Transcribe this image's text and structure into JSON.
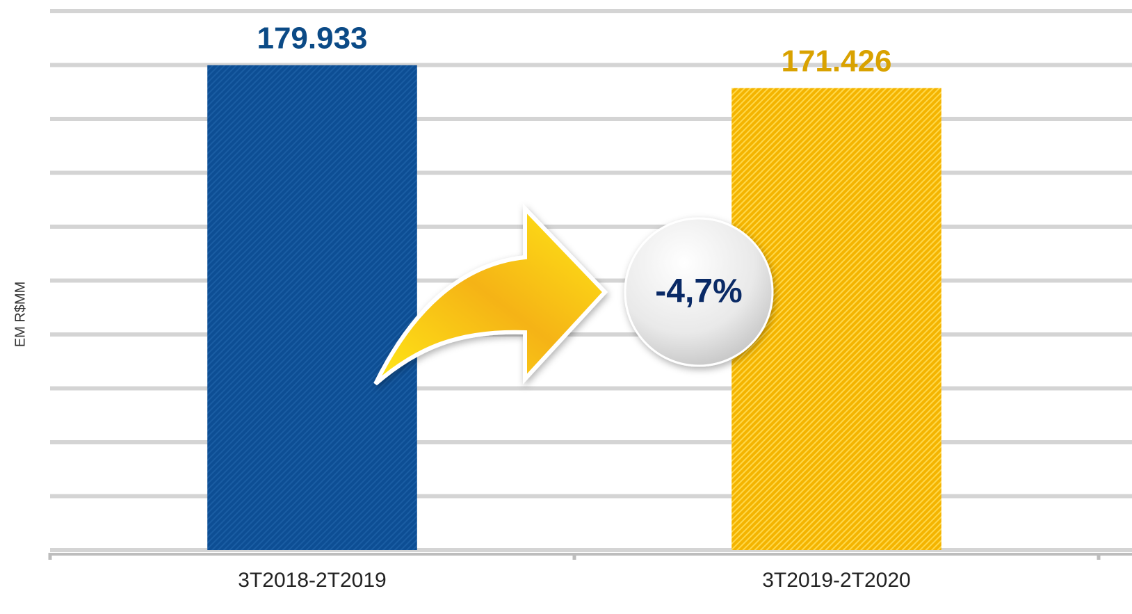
{
  "chart_data": {
    "type": "bar",
    "y_label": "EM R$MM",
    "categories": [
      "3T2018-2T2019",
      "3T2019-2T2020"
    ],
    "values": [
      179.933,
      171.426
    ],
    "colors": [
      "#0d4e94",
      "#f4b400"
    ],
    "label_colors": [
      "#0b4a86",
      "#d9a200"
    ],
    "ylim": [
      0,
      200
    ],
    "yticks": [
      0,
      20,
      40,
      60,
      80,
      100,
      120,
      140,
      160,
      180,
      200
    ],
    "grid": true,
    "annotation": "-4,7%"
  }
}
